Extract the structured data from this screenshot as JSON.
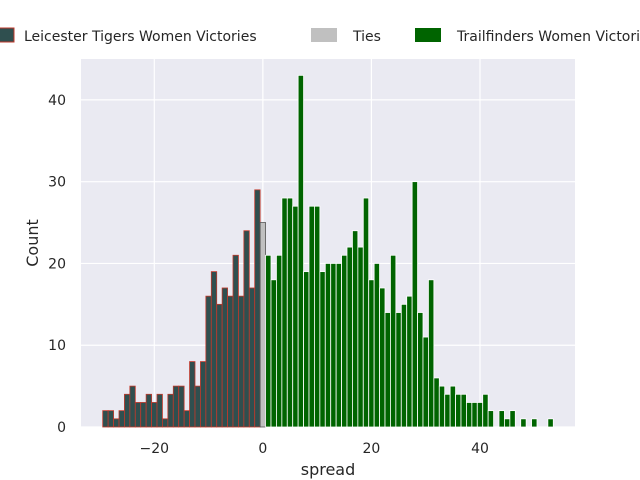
{
  "chart_data": {
    "type": "bar",
    "xlabel": "spread",
    "ylabel": "Count",
    "xlim": [
      -33.5,
      57.5
    ],
    "ylim": [
      0,
      45
    ],
    "x_ticks": [
      -20,
      0,
      20,
      40
    ],
    "y_ticks": [
      0,
      10,
      20,
      30,
      40
    ],
    "x_tick_labels": [
      "−20",
      "0",
      "20",
      "40"
    ],
    "y_tick_labels": [
      "0",
      "10",
      "20",
      "30",
      "40"
    ],
    "grid": true,
    "legend_position": "top",
    "series": [
      {
        "name": "Leicester Tigers Women Victories",
        "color": "#2f4f4f",
        "edge_color": "#c0392b",
        "x": [
          -29,
          -28,
          -27,
          -26,
          -25,
          -24,
          -23,
          -22,
          -21,
          -20,
          -19,
          -18,
          -17,
          -16,
          -15,
          -14,
          -13,
          -12,
          -11,
          -10,
          -9,
          -8,
          -7,
          -6,
          -5,
          -4,
          -3,
          -2,
          -1
        ],
        "values": [
          2,
          2,
          1,
          2,
          4,
          5,
          3,
          3,
          4,
          3,
          4,
          1,
          4,
          5,
          5,
          2,
          8,
          5,
          8,
          16,
          19,
          15,
          17,
          16,
          21,
          16,
          24,
          17,
          29
        ]
      },
      {
        "name": "Ties",
        "color": "#c0c0c0",
        "edge_color": "#555555",
        "x": [
          0
        ],
        "values": [
          25
        ]
      },
      {
        "name": "Trailfinders Women Victories",
        "color": "#006400",
        "edge_color": "#ffffff",
        "x": [
          1,
          2,
          3,
          4,
          5,
          6,
          7,
          8,
          9,
          10,
          11,
          12,
          13,
          14,
          15,
          16,
          17,
          18,
          19,
          20,
          21,
          22,
          23,
          24,
          25,
          26,
          27,
          28,
          29,
          30,
          31,
          32,
          33,
          34,
          35,
          36,
          37,
          38,
          39,
          40,
          41,
          42,
          44,
          45,
          46,
          48,
          50,
          53
        ],
        "values": [
          21,
          18,
          21,
          28,
          28,
          27,
          43,
          19,
          27,
          27,
          19,
          20,
          20,
          20,
          21,
          22,
          24,
          22,
          28,
          18,
          20,
          17,
          14,
          21,
          14,
          15,
          16,
          30,
          14,
          11,
          18,
          6,
          5,
          4,
          5,
          4,
          4,
          3,
          3,
          3,
          4,
          2,
          2,
          1,
          2,
          1,
          1,
          1
        ]
      }
    ]
  }
}
